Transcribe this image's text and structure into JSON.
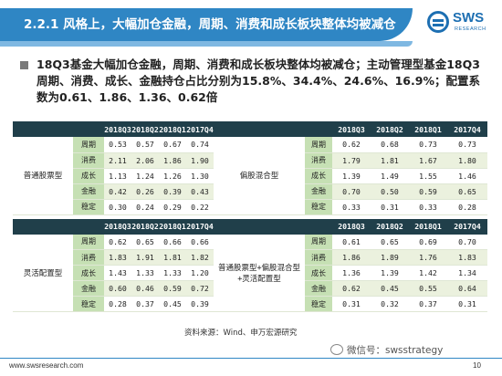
{
  "header": {
    "title": "2.2.1 风格上，大幅加仓金融，周期、消费和成长板块整体均被减仓",
    "logo_text": "SWS",
    "logo_sub": "RESEARCH"
  },
  "bullet": {
    "text": "18Q3基金大幅加仓金融，周期、消费和成长板块整体均被减仓；主动管理型基金18Q3周期、消费、成长、金融持仓占比分别为15.8%、34.4%、24.6%、16.9%；配置系数为0.61、1.86、1.36、0.62倍"
  },
  "table_top": {
    "header": [
      "2018Q3",
      "2018Q2",
      "2018Q1",
      "2017Q4"
    ],
    "left_group": "普通股票型",
    "right_group": "偏股混合型",
    "rows": [
      {
        "label": "周期",
        "left": [
          "0.53",
          "0.57",
          "0.67",
          "0.74"
        ],
        "right": [
          "0.62",
          "0.68",
          "0.73",
          "0.73"
        ]
      },
      {
        "label": "消费",
        "left": [
          "2.11",
          "2.06",
          "1.86",
          "1.90"
        ],
        "right": [
          "1.79",
          "1.81",
          "1.67",
          "1.80"
        ]
      },
      {
        "label": "成长",
        "left": [
          "1.13",
          "1.24",
          "1.26",
          "1.30"
        ],
        "right": [
          "1.39",
          "1.49",
          "1.55",
          "1.46"
        ]
      },
      {
        "label": "金融",
        "left": [
          "0.42",
          "0.26",
          "0.39",
          "0.43"
        ],
        "right": [
          "0.70",
          "0.50",
          "0.59",
          "0.65"
        ]
      },
      {
        "label": "稳定",
        "left": [
          "0.30",
          "0.24",
          "0.29",
          "0.22"
        ],
        "right": [
          "0.33",
          "0.31",
          "0.33",
          "0.28"
        ]
      }
    ]
  },
  "table_bottom": {
    "header": [
      "2018Q3",
      "2018Q2",
      "2018Q1",
      "2017Q4"
    ],
    "left_group": "灵活配置型",
    "right_group": "普通股票型+偏股混合型+灵活配置型",
    "rows": [
      {
        "label": "周期",
        "left": [
          "0.62",
          "0.65",
          "0.66",
          "0.66"
        ],
        "right": [
          "0.61",
          "0.65",
          "0.69",
          "0.70"
        ]
      },
      {
        "label": "消费",
        "left": [
          "1.83",
          "1.91",
          "1.81",
          "1.82"
        ],
        "right": [
          "1.86",
          "1.89",
          "1.76",
          "1.83"
        ]
      },
      {
        "label": "成长",
        "left": [
          "1.43",
          "1.33",
          "1.33",
          "1.20"
        ],
        "right": [
          "1.36",
          "1.39",
          "1.42",
          "1.34"
        ]
      },
      {
        "label": "金融",
        "left": [
          "0.60",
          "0.46",
          "0.59",
          "0.72"
        ],
        "right": [
          "0.62",
          "0.45",
          "0.55",
          "0.64"
        ]
      },
      {
        "label": "稳定",
        "left": [
          "0.28",
          "0.37",
          "0.45",
          "0.39"
        ],
        "right": [
          "0.31",
          "0.32",
          "0.37",
          "0.31"
        ]
      }
    ]
  },
  "source": "资料来源：Wind、申万宏源研究",
  "footer": {
    "url": "www.swsresearch.com",
    "page": "10",
    "wechat": "微信号：swsstrategy"
  },
  "colors": {
    "header_blue": "#2f86c4",
    "table_header": "#203f4a",
    "label_green": "#c6e0b4",
    "alt_row": "#ebf1de"
  }
}
